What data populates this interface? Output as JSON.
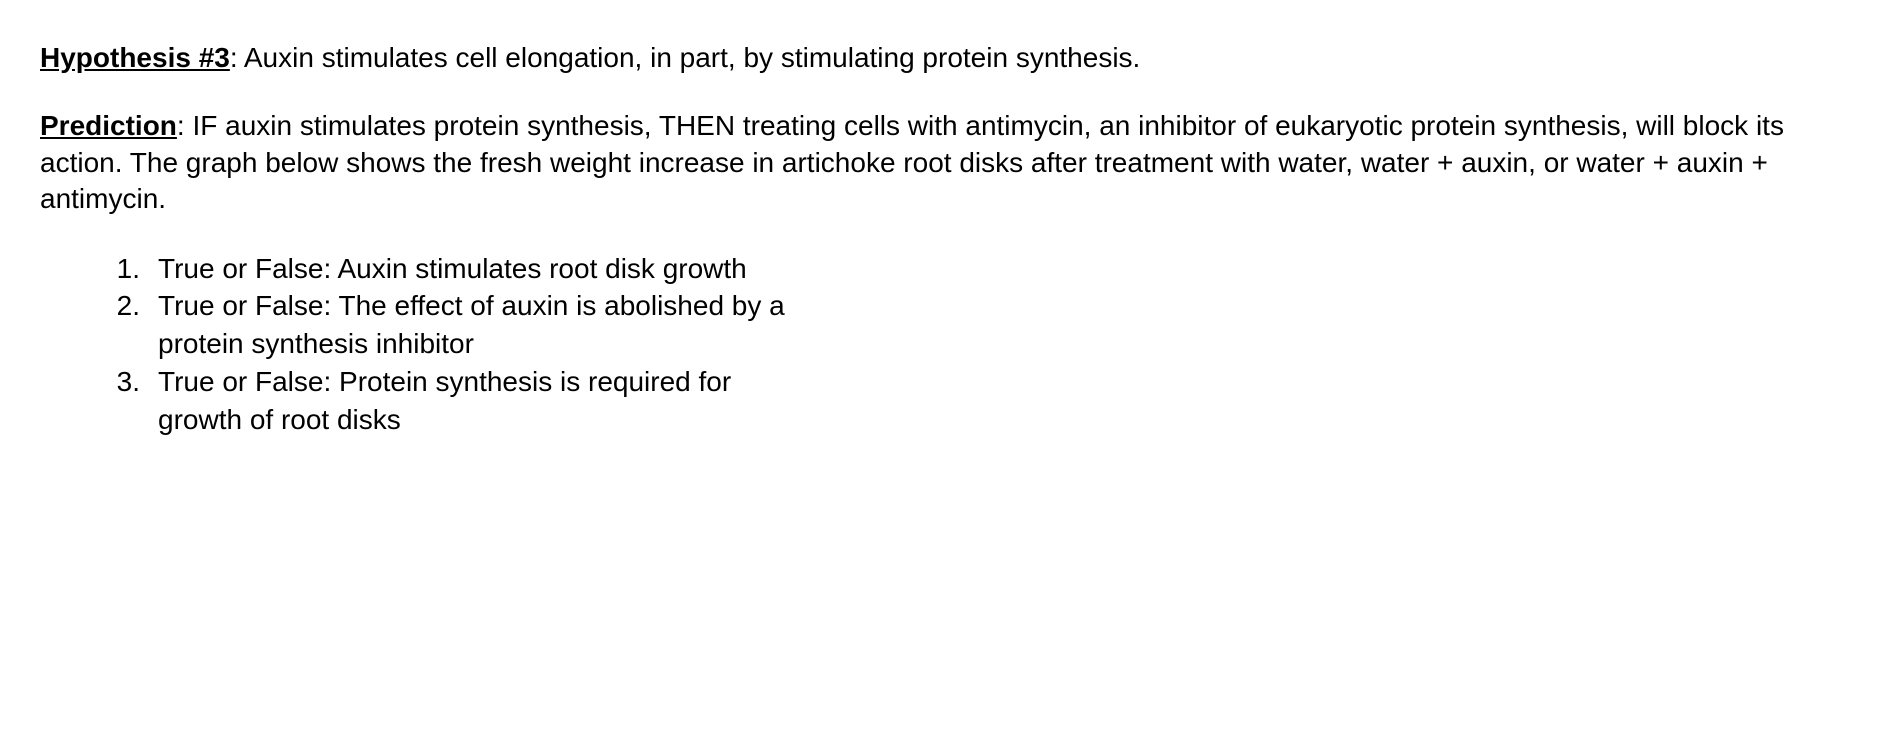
{
  "hypothesis": {
    "label": "Hypothesis #3",
    "text": ": Auxin stimulates cell elongation, in part, by stimulating protein synthesis."
  },
  "prediction": {
    "label": "Prediction",
    "text": ": IF auxin stimulates protein synthesis, THEN treating cells with antimycin, an inhibitor of eukaryotic protein synthesis, will block its action. The graph below shows the fresh weight increase in artichoke root disks after treatment with water, water + auxin, or water + auxin + antimycin."
  },
  "questions": [
    {
      "number": "1.",
      "text": "True or False: Auxin stimulates root disk growth"
    },
    {
      "number": "2.",
      "text": "True or False: The effect of auxin is abolished by a protein synthesis inhibitor"
    },
    {
      "number": "3.",
      "text": "True or False: Protein synthesis is required for growth of root disks"
    }
  ]
}
